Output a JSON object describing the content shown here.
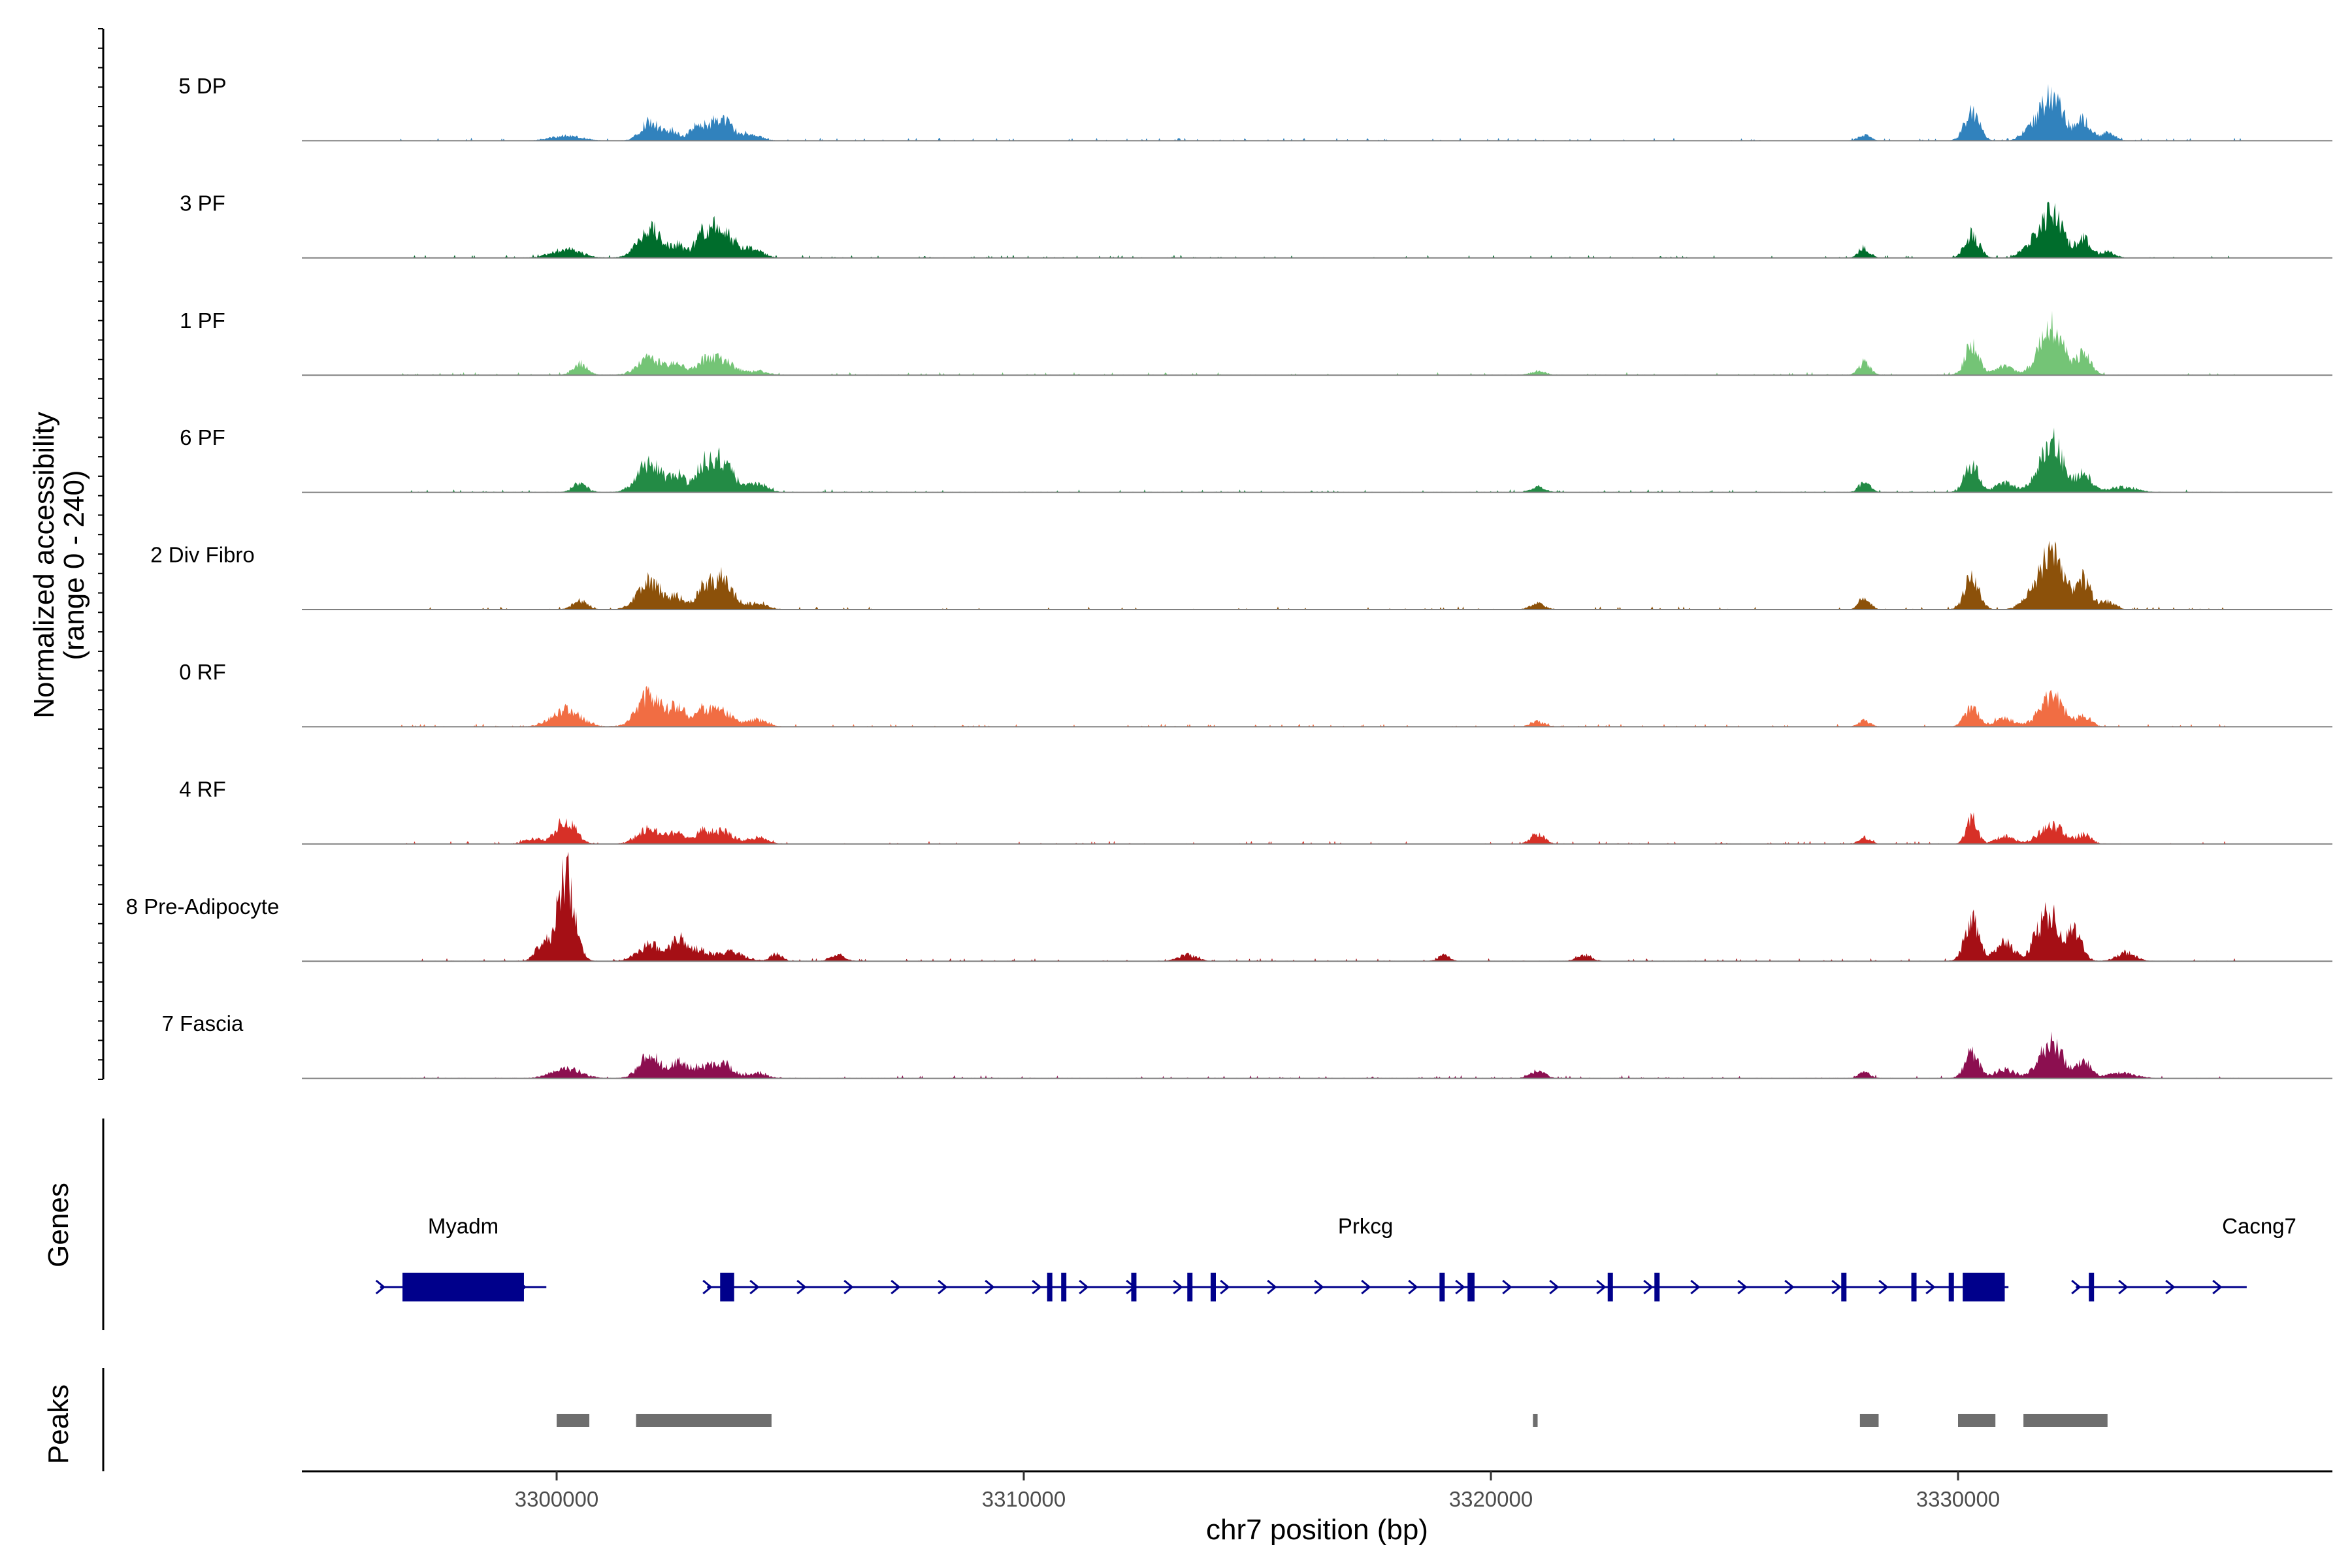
{
  "chart_data": {
    "type": "area",
    "title": "",
    "chromosome": "chr7",
    "xlabel": "chr7 position (bp)",
    "ylabel_line1": "Normalized accessibility",
    "ylabel_line2": "(range 0 - 240)",
    "genes_label": "Genes",
    "peaks_label": "Peaks",
    "xlim": [
      3294500,
      3338000
    ],
    "ylim": [
      0,
      240
    ],
    "x_ticks": [
      3300000,
      3310000,
      3320000,
      3330000
    ],
    "x_tick_labels": [
      "3300000",
      "3310000",
      "3320000",
      "3330000"
    ],
    "tracks": [
      {
        "name": "5 DP",
        "color": "#3182bd",
        "peaks": [
          [
            3300200,
            12,
            300
          ],
          [
            3302000,
            48,
            200
          ],
          [
            3302500,
            22,
            140
          ],
          [
            3303000,
            30,
            150
          ],
          [
            3303500,
            55,
            250
          ],
          [
            3304200,
            12,
            200
          ],
          [
            3328000,
            14,
            120
          ],
          [
            3330300,
            75,
            150
          ],
          [
            3331500,
            20,
            160
          ],
          [
            3332000,
            110,
            250
          ],
          [
            3332700,
            50,
            150
          ],
          [
            3333200,
            18,
            150
          ]
        ]
      },
      {
        "name": "3 PF",
        "color": "#006d2c",
        "peaks": [
          [
            3300200,
            22,
            300
          ],
          [
            3302000,
            72,
            250
          ],
          [
            3302600,
            30,
            150
          ],
          [
            3303100,
            38,
            150
          ],
          [
            3303500,
            80,
            260
          ],
          [
            3304200,
            22,
            200
          ],
          [
            3328000,
            22,
            120
          ],
          [
            3330300,
            58,
            150
          ],
          [
            3331500,
            22,
            180
          ],
          [
            3332000,
            118,
            240
          ],
          [
            3332700,
            45,
            150
          ],
          [
            3333200,
            15,
            150
          ]
        ]
      },
      {
        "name": "1 PF",
        "color": "#74c476",
        "peaks": [
          [
            3300500,
            28,
            150
          ],
          [
            3302000,
            42,
            250
          ],
          [
            3302600,
            30,
            150
          ],
          [
            3303100,
            22,
            150
          ],
          [
            3303500,
            42,
            260
          ],
          [
            3304300,
            10,
            200
          ],
          [
            3321000,
            10,
            150
          ],
          [
            3328000,
            32,
            120
          ],
          [
            3330300,
            70,
            150
          ],
          [
            3331000,
            20,
            200
          ],
          [
            3332000,
            125,
            250
          ],
          [
            3332700,
            50,
            150
          ]
        ]
      },
      {
        "name": "6 PF",
        "color": "#238b45",
        "peaks": [
          [
            3300500,
            20,
            150
          ],
          [
            3302000,
            75,
            250
          ],
          [
            3302600,
            40,
            150
          ],
          [
            3303100,
            48,
            150
          ],
          [
            3303500,
            80,
            260
          ],
          [
            3304300,
            20,
            200
          ],
          [
            3321000,
            12,
            150
          ],
          [
            3328000,
            26,
            120
          ],
          [
            3330300,
            68,
            150
          ],
          [
            3331000,
            24,
            200
          ],
          [
            3332000,
            128,
            250
          ],
          [
            3332700,
            45,
            150
          ],
          [
            3333500,
            12,
            300
          ]
        ]
      },
      {
        "name": "2 Div Fibro",
        "color": "#8c510a",
        "peaks": [
          [
            3300500,
            22,
            150
          ],
          [
            3302000,
            70,
            250
          ],
          [
            3302600,
            28,
            150
          ],
          [
            3303100,
            30,
            150
          ],
          [
            3303500,
            78,
            260
          ],
          [
            3304300,
            15,
            200
          ],
          [
            3321000,
            15,
            150
          ],
          [
            3328000,
            30,
            120
          ],
          [
            3330300,
            82,
            150
          ],
          [
            3331500,
            22,
            180
          ],
          [
            3332000,
            150,
            250
          ],
          [
            3332700,
            72,
            150
          ],
          [
            3333200,
            20,
            150
          ]
        ]
      },
      {
        "name": "0 RF",
        "color": "#f16d43",
        "peaks": [
          [
            3300200,
            42,
            300
          ],
          [
            3302000,
            78,
            260
          ],
          [
            3302600,
            48,
            150
          ],
          [
            3303100,
            32,
            150
          ],
          [
            3303500,
            40,
            250
          ],
          [
            3304300,
            18,
            200
          ],
          [
            3321000,
            12,
            150
          ],
          [
            3328000,
            15,
            120
          ],
          [
            3330300,
            48,
            150
          ],
          [
            3331000,
            20,
            200
          ],
          [
            3332000,
            78,
            250
          ],
          [
            3332700,
            25,
            150
          ]
        ]
      },
      {
        "name": "4 RF",
        "color": "#d73027",
        "peaks": [
          [
            3300200,
            60,
            200
          ],
          [
            3299500,
            12,
            200
          ],
          [
            3302000,
            38,
            250
          ],
          [
            3302600,
            30,
            150
          ],
          [
            3303100,
            22,
            150
          ],
          [
            3303500,
            32,
            250
          ],
          [
            3304300,
            15,
            200
          ],
          [
            3321000,
            25,
            150
          ],
          [
            3328000,
            15,
            120
          ],
          [
            3330300,
            62,
            120
          ],
          [
            3331000,
            18,
            200
          ],
          [
            3332000,
            48,
            250
          ],
          [
            3332700,
            22,
            150
          ]
        ]
      },
      {
        "name": "8 Pre-Adipocyte",
        "color": "#a50f15",
        "peaks": [
          [
            3300200,
            220,
            180
          ],
          [
            3299700,
            40,
            150
          ],
          [
            3302000,
            40,
            250
          ],
          [
            3302600,
            50,
            150
          ],
          [
            3303000,
            28,
            200
          ],
          [
            3303700,
            22,
            300
          ],
          [
            3304700,
            18,
            120
          ],
          [
            3306000,
            15,
            150
          ],
          [
            3313500,
            15,
            200
          ],
          [
            3319000,
            14,
            120
          ],
          [
            3322000,
            15,
            150
          ],
          [
            3330300,
            98,
            150
          ],
          [
            3331000,
            48,
            200
          ],
          [
            3331700,
            45,
            150
          ],
          [
            3332000,
            105,
            200
          ],
          [
            3332500,
            68,
            150
          ],
          [
            3333600,
            20,
            200
          ]
        ]
      },
      {
        "name": "7 Fascia",
        "color": "#8c0f50",
        "peaks": [
          [
            3300200,
            25,
            300
          ],
          [
            3302000,
            60,
            220
          ],
          [
            3302600,
            35,
            150
          ],
          [
            3303000,
            22,
            200
          ],
          [
            3303500,
            38,
            250
          ],
          [
            3304300,
            12,
            200
          ],
          [
            3321000,
            18,
            150
          ],
          [
            3328000,
            15,
            120
          ],
          [
            3330300,
            62,
            150
          ],
          [
            3331000,
            22,
            200
          ],
          [
            3332000,
            88,
            250
          ],
          [
            3332700,
            40,
            150
          ],
          [
            3333500,
            12,
            300
          ]
        ]
      }
    ],
    "genes": [
      {
        "name": "Myadm",
        "start": 3296500,
        "end": 3299500,
        "strand": "+",
        "exons": [
          [
            3296700,
            3299300
          ]
        ]
      },
      {
        "name": "Prkcg",
        "start": 3303500,
        "end": 3330800,
        "strand": "+",
        "exons": [
          [
            3303500,
            3303800
          ],
          [
            3310500,
            3310600
          ],
          [
            3310800,
            3310900
          ],
          [
            3312300,
            3312400
          ],
          [
            3313500,
            3313600
          ],
          [
            3314000,
            3314100
          ],
          [
            3318900,
            3319000
          ],
          [
            3319500,
            3319650
          ],
          [
            3322500,
            3322600
          ],
          [
            3323500,
            3323600
          ],
          [
            3327500,
            3327600
          ],
          [
            3329000,
            3329100
          ],
          [
            3329800,
            3329900
          ],
          [
            3330100,
            3331000
          ]
        ]
      },
      {
        "name": "Cacng7",
        "start": 3332800,
        "end": 3335900,
        "strand": "+",
        "exons": [
          [
            3332800,
            3332900
          ]
        ]
      }
    ],
    "peak_regions": [
      [
        3300000,
        3300700
      ],
      [
        3301700,
        3304600
      ],
      [
        3320900,
        3321000
      ],
      [
        3327900,
        3328300
      ],
      [
        3330000,
        3330800
      ],
      [
        3331400,
        3333200
      ]
    ]
  }
}
